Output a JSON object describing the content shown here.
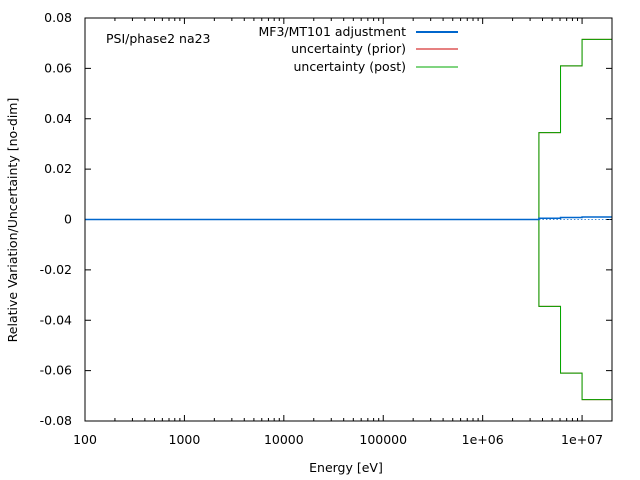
{
  "chart_data": {
    "type": "line",
    "title": "",
    "annotation": "PSI/phase2 na23",
    "xlabel": "Energy [eV]",
    "ylabel": "Relative Variation/Uncertainty [no-dim]",
    "xscale": "log",
    "xlim": [
      100,
      20000000
    ],
    "ylim": [
      -0.08,
      0.08
    ],
    "x_ticks": [
      {
        "value": 100,
        "label": "100"
      },
      {
        "value": 1000,
        "label": "1000"
      },
      {
        "value": 10000,
        "label": "10000"
      },
      {
        "value": 100000,
        "label": "100000"
      },
      {
        "value": 1000000,
        "label": "1e+06"
      },
      {
        "value": 10000000,
        "label": "1e+07"
      }
    ],
    "y_ticks": [
      {
        "value": -0.08,
        "label": "-0.08"
      },
      {
        "value": -0.06,
        "label": "-0.06"
      },
      {
        "value": -0.04,
        "label": "-0.04"
      },
      {
        "value": -0.02,
        "label": "-0.02"
      },
      {
        "value": 0,
        "label": "0"
      },
      {
        "value": 0.02,
        "label": "0.02"
      },
      {
        "value": 0.04,
        "label": "0.04"
      },
      {
        "value": 0.06,
        "label": "0.06"
      },
      {
        "value": 0.08,
        "label": "0.08"
      }
    ],
    "legend_position": "top-center",
    "grid": false,
    "series": [
      {
        "name": "MF3/MT101 adjustment",
        "color": "#0066cc",
        "style": "step",
        "points": [
          [
            100,
            0
          ],
          [
            3680000,
            0
          ],
          [
            3680000,
            0.0005
          ],
          [
            6070000,
            0.0005
          ],
          [
            6070000,
            0.0008
          ],
          [
            10000000,
            0.0008
          ],
          [
            10000000,
            0.001
          ],
          [
            20000000,
            0.001
          ]
        ]
      },
      {
        "name": "uncertainty (prior)",
        "color": "#cc0000",
        "style": "step-symmetric",
        "points": [
          [
            100,
            0
          ],
          [
            3680000,
            0
          ],
          [
            3680000,
            0.0345
          ],
          [
            6070000,
            0.0345
          ],
          [
            6070000,
            0.061
          ],
          [
            10000000,
            0.061
          ],
          [
            10000000,
            0.0715
          ],
          [
            20000000,
            0.0715
          ]
        ]
      },
      {
        "name": "uncertainty (post)",
        "color": "#00aa00",
        "style": "step-symmetric",
        "points": [
          [
            100,
            0
          ],
          [
            3680000,
            0
          ],
          [
            3680000,
            0.0345
          ],
          [
            6070000,
            0.0345
          ],
          [
            6070000,
            0.061
          ],
          [
            10000000,
            0.061
          ],
          [
            10000000,
            0.0715
          ],
          [
            20000000,
            0.0715
          ]
        ]
      }
    ]
  }
}
